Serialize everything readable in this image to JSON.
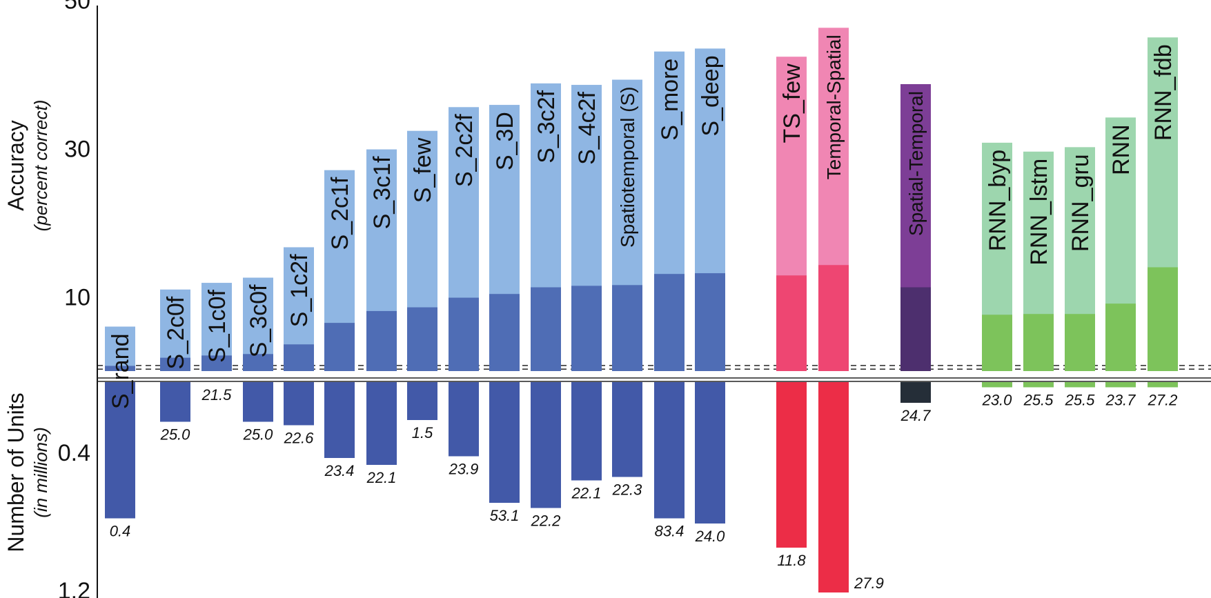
{
  "chart_data": {
    "type": "bar",
    "top_panel": {
      "ylabel": "Accuracy",
      "ylabel_sub": "(percent correct)",
      "yticks": [
        10,
        30,
        50
      ],
      "ylim": [
        0,
        50
      ]
    },
    "bottom_panel": {
      "ylabel": "Number of Units",
      "ylabel_sub": "(in millions)",
      "yticks": [
        0.4,
        1.2
      ],
      "ylim": [
        0,
        1.4
      ]
    },
    "categories": [
      "S_rand",
      "S_2c0f",
      "S_1c0f",
      "S_3c0f",
      "S_1c2f",
      "S_2c1f",
      "S_3c1f",
      "S_few",
      "S_2c2f",
      "S_3D",
      "S_3c2f",
      "S_4c2f",
      "Spatiotemporal (S)",
      "S_more",
      "S_deep",
      "TS_few",
      "Temporal-Spatial",
      "Spatial-Temporal",
      "RNN_byp",
      "RNN_lstm",
      "RNN_gru",
      "RNN",
      "RNN_fdb"
    ],
    "series": [
      {
        "name": "",
        "values": [
          6.0,
          11.0,
          11.9,
          12.6,
          16.7,
          27.1,
          29.9,
          32.4,
          35.6,
          35.9,
          38.8,
          38.6,
          39.3,
          43.1,
          43.5,
          42.4,
          46.3,
          38.7,
          30.8,
          29.6,
          30.2,
          34.2,
          45.0
        ]
      },
      {
        "name": "",
        "values": [
          0.7,
          1.8,
          2.1,
          2.3,
          3.6,
          6.5,
          8.1,
          8.6,
          9.9,
          10.4,
          11.3,
          11.5,
          11.6,
          13.1,
          13.2,
          12.9,
          14.3,
          11.3,
          7.6,
          7.7,
          7.7,
          9.1,
          14.0
        ]
      }
    ],
    "chance_lines": [
      0.26,
      0.75
    ],
    "units_millions": [
      0.79,
      0.23,
      0.0,
      0.23,
      0.25,
      0.44,
      0.48,
      0.22,
      0.43,
      0.7,
      0.73,
      0.57,
      0.55,
      0.79,
      0.82,
      0.96,
      1.22,
      0.12,
      0.03,
      0.03,
      0.03,
      0.03,
      0.03
    ],
    "value_labels": [
      "0.4",
      "25.0",
      "21.5",
      "25.0",
      "22.6",
      "23.4",
      "22.1",
      "1.5",
      "23.9",
      "53.1",
      "22.2",
      "22.1",
      "22.3",
      "83.4",
      "24.0",
      "11.8",
      "27.9",
      "24.7",
      "23.0",
      "25.5",
      "25.5",
      "23.7",
      "27.2"
    ],
    "colors": {
      "blue_light": "#8fb6e3",
      "blue_dark": "#4f6db5",
      "blue_bottom": "#4259a8",
      "pink_light": "#f086b3",
      "pink_dark": "#ee4672",
      "pink_bottom": "#ec2d47",
      "purple_light": "#7d3e96",
      "purple_dark": "#4d2f6e",
      "purple_bottom": "#252e38",
      "green_light": "#9dd6ae",
      "green_dark": "#7dc35b",
      "green_bottom": "#7dc35b"
    }
  }
}
